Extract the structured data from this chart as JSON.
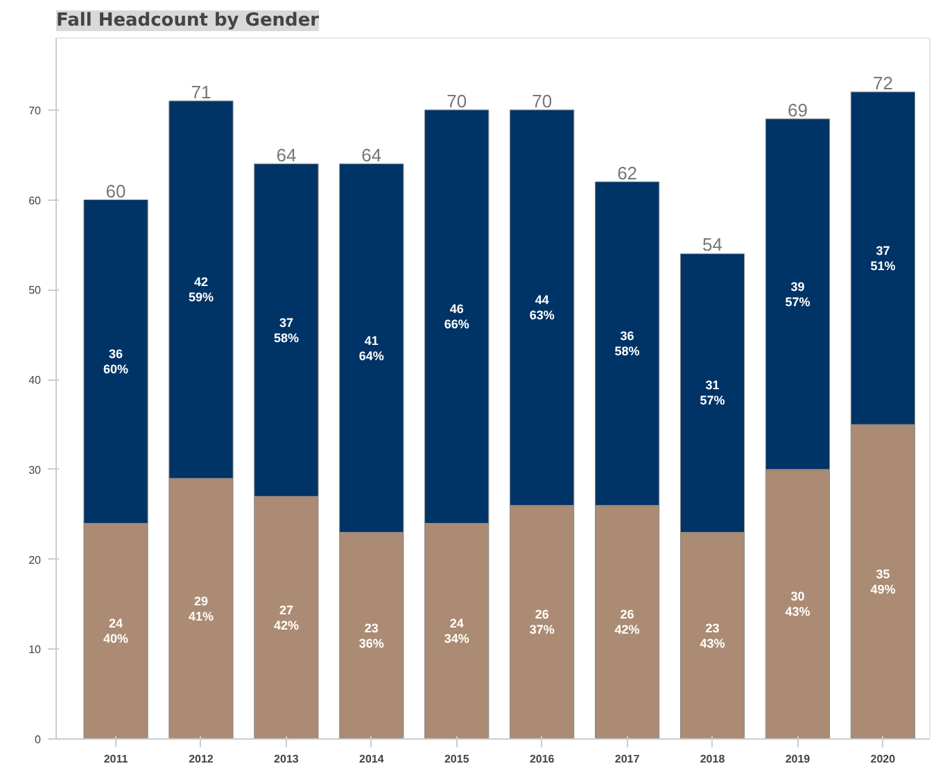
{
  "chart_data": {
    "type": "bar",
    "title": "Fall Headcount by Gender",
    "stacked": true,
    "categories": [
      "2011",
      "2012",
      "2013",
      "2014",
      "2015",
      "2016",
      "2017",
      "2018",
      "2019",
      "2020"
    ],
    "series": [
      {
        "color": "#ab8b73",
        "values": [
          24,
          29,
          27,
          23,
          24,
          26,
          26,
          23,
          30,
          35
        ],
        "value_labels": [
          "24\n40%",
          "29\n41%",
          "27\n42%",
          "23\n36%",
          "24\n34%",
          "26\n37%",
          "26\n42%",
          "23\n43%",
          "30\n43%",
          "35\n49%"
        ]
      },
      {
        "color": "#003366",
        "values": [
          36,
          42,
          37,
          41,
          46,
          44,
          36,
          31,
          39,
          37
        ],
        "value_labels": [
          "36\n60%",
          "42\n59%",
          "37\n58%",
          "41\n64%",
          "46\n66%",
          "44\n63%",
          "36\n58%",
          "31\n57%",
          "39\n57%",
          "37\n51%"
        ]
      }
    ],
    "totals": [
      "60",
      "71",
      "64",
      "64",
      "70",
      "70",
      "62",
      "54",
      "69",
      "72"
    ],
    "ylim": [
      0,
      78
    ],
    "yticks": [
      0,
      10,
      20,
      30,
      40,
      50,
      60,
      70
    ],
    "grid": false
  }
}
